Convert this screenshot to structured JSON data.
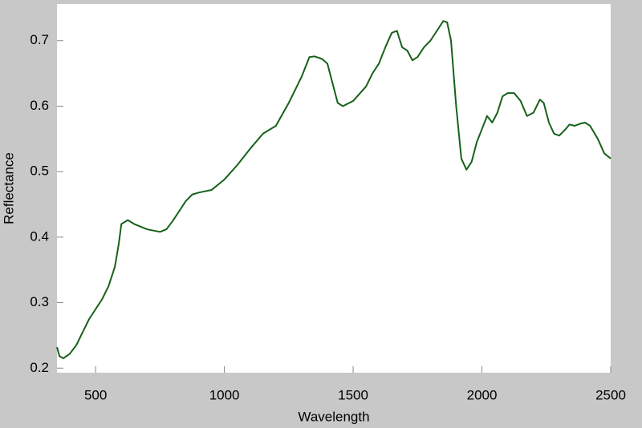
{
  "chart_data": {
    "type": "line",
    "xlabel": "Wavelength",
    "ylabel": "Reflectance",
    "color": "#16611a",
    "x": [
      350,
      360,
      375,
      400,
      425,
      450,
      475,
      500,
      525,
      550,
      575,
      590,
      600,
      625,
      650,
      700,
      750,
      775,
      800,
      850,
      875,
      900,
      950,
      1000,
      1050,
      1100,
      1150,
      1200,
      1250,
      1300,
      1330,
      1350,
      1380,
      1400,
      1420,
      1440,
      1460,
      1500,
      1550,
      1575,
      1600,
      1625,
      1650,
      1670,
      1690,
      1710,
      1730,
      1750,
      1775,
      1800,
      1825,
      1850,
      1865,
      1880,
      1900,
      1920,
      1940,
      1960,
      1980,
      2000,
      2020,
      2040,
      2060,
      2080,
      2100,
      2125,
      2150,
      2175,
      2200,
      2225,
      2240,
      2260,
      2280,
      2300,
      2325,
      2340,
      2360,
      2380,
      2400,
      2420,
      2450,
      2475,
      2500
    ],
    "values": [
      0.232,
      0.218,
      0.215,
      0.222,
      0.235,
      0.255,
      0.275,
      0.29,
      0.305,
      0.325,
      0.355,
      0.39,
      0.42,
      0.426,
      0.42,
      0.412,
      0.408,
      0.412,
      0.425,
      0.455,
      0.465,
      0.468,
      0.472,
      0.488,
      0.51,
      0.535,
      0.558,
      0.57,
      0.605,
      0.645,
      0.675,
      0.676,
      0.672,
      0.665,
      0.635,
      0.605,
      0.6,
      0.608,
      0.63,
      0.65,
      0.665,
      0.69,
      0.712,
      0.715,
      0.69,
      0.685,
      0.67,
      0.675,
      0.69,
      0.7,
      0.715,
      0.73,
      0.728,
      0.7,
      0.6,
      0.52,
      0.503,
      0.515,
      0.545,
      0.565,
      0.585,
      0.575,
      0.59,
      0.615,
      0.62,
      0.62,
      0.608,
      0.585,
      0.59,
      0.61,
      0.605,
      0.575,
      0.558,
      0.555,
      0.565,
      0.572,
      0.57,
      0.573,
      0.575,
      0.57,
      0.55,
      0.528,
      0.52
    ],
    "xlim": [
      350,
      2500
    ],
    "ylim": [
      0.193,
      0.756
    ],
    "xticks": [
      500,
      1000,
      1500,
      2000,
      2500
    ],
    "yticks": [
      0.2,
      0.3,
      0.4,
      0.5,
      0.6,
      0.7
    ]
  }
}
